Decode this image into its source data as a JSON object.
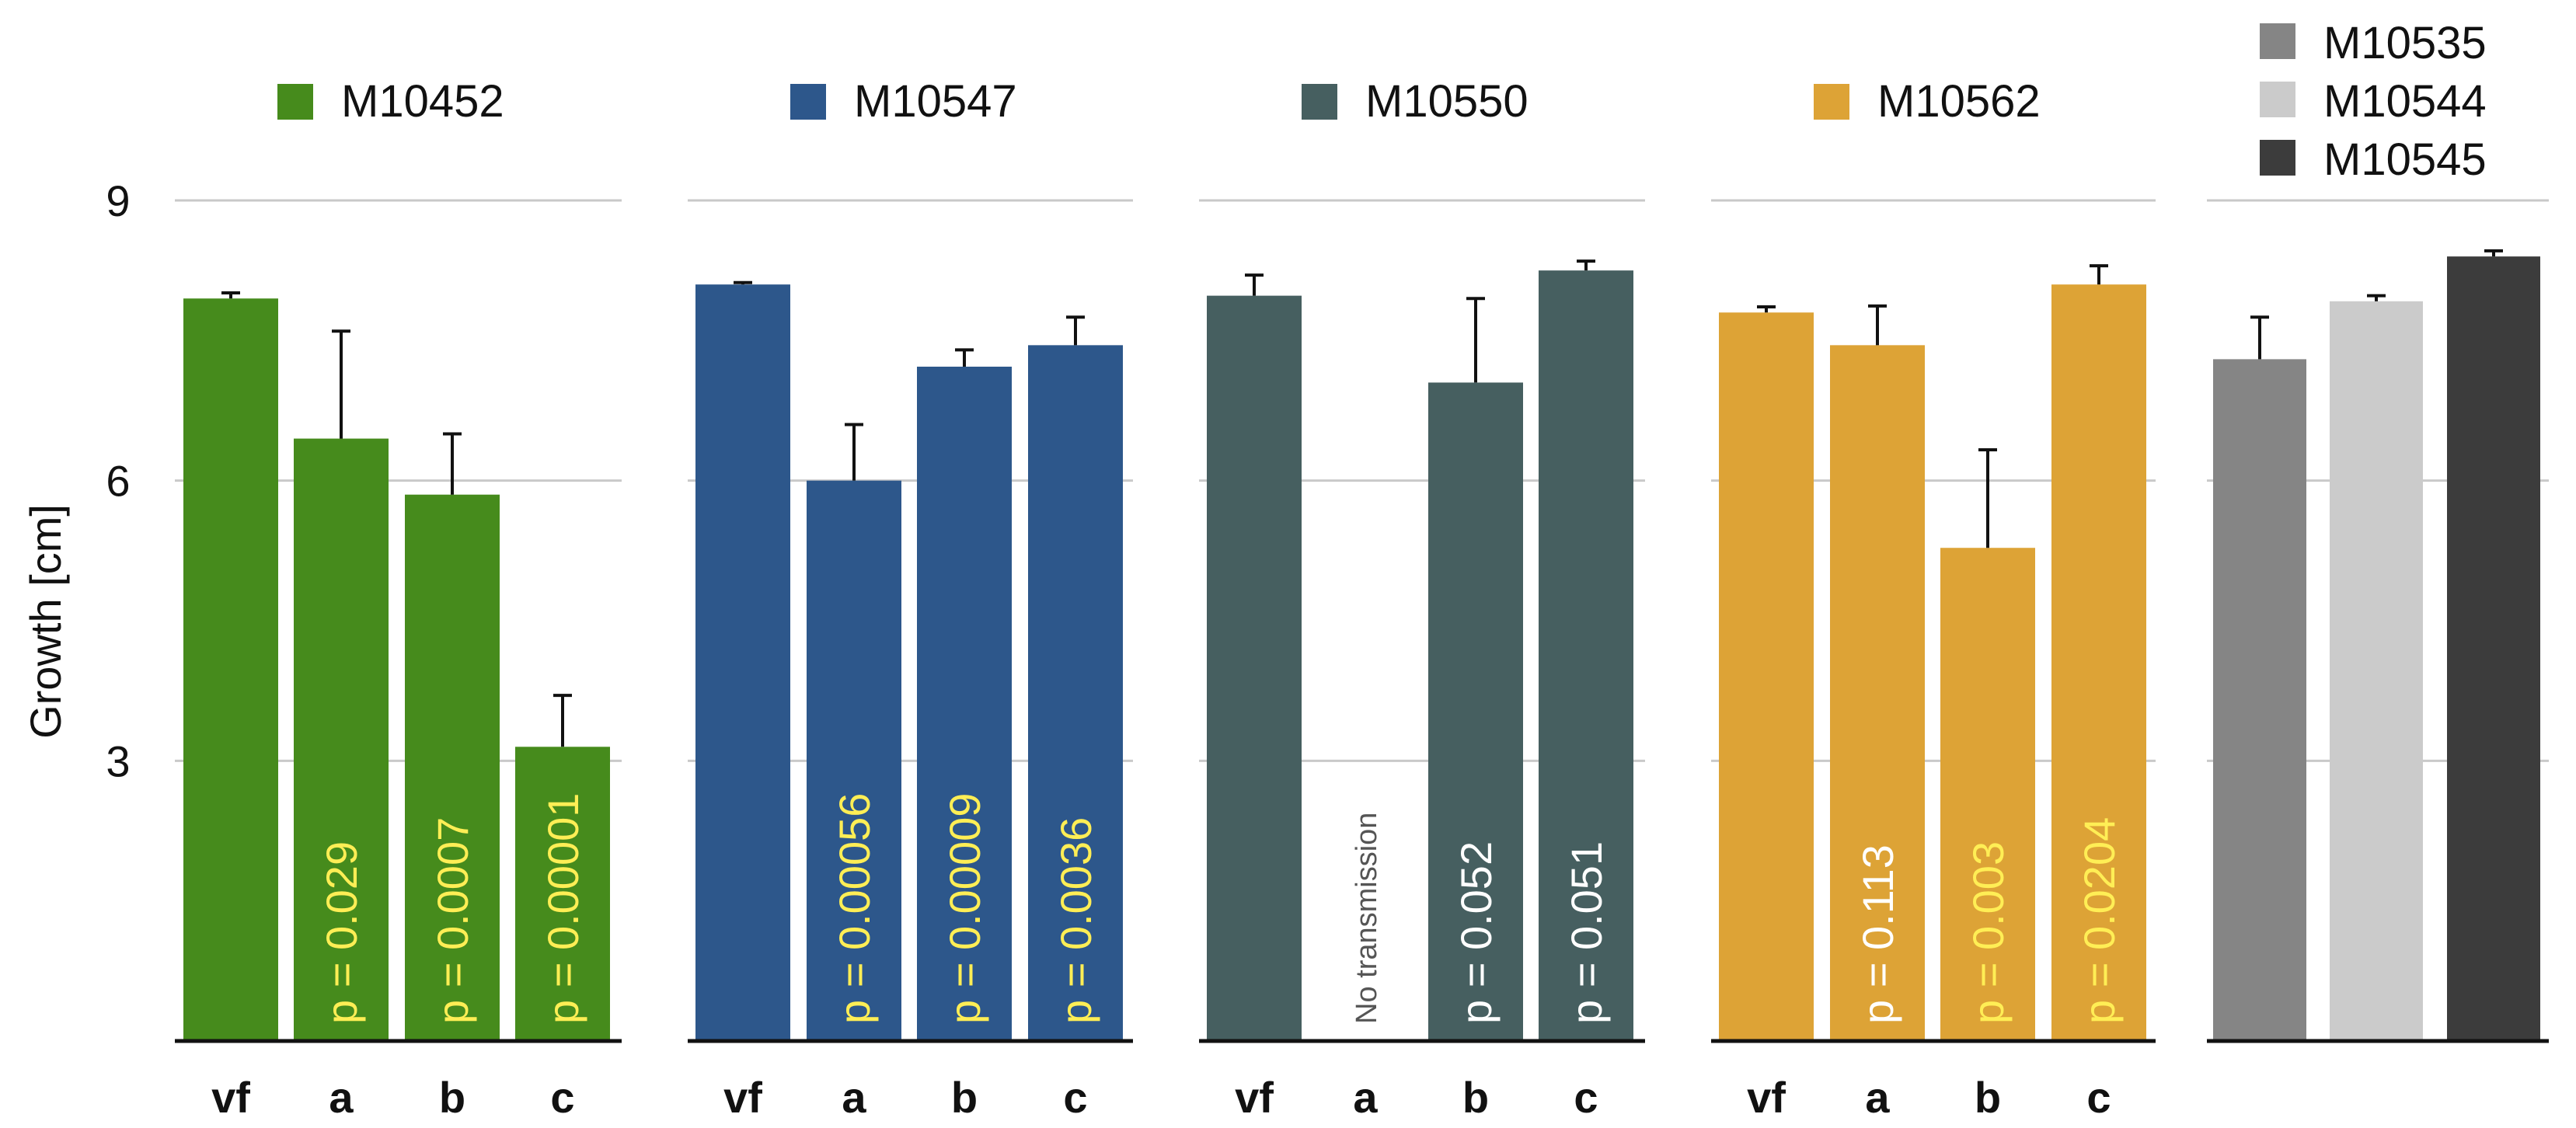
{
  "chart_data": {
    "type": "bar",
    "ylabel": "Growth [cm]",
    "ylim": [
      0,
      9
    ],
    "yticks": [
      3,
      6,
      9
    ],
    "grid": true,
    "colors": {
      "green": "#468b1c",
      "blue": "#2d578b",
      "slate": "#465f60",
      "gold": "#dda336",
      "pval_yellow": "#ffee55",
      "pval_white": "#ffffff",
      "axis": "#111111",
      "grid": "#c9c9c9",
      "label_gray": "#555555"
    },
    "panels": [
      {
        "legend": "M10452",
        "color": "#468b1c",
        "bars": [
          {
            "category": "vf",
            "value": 7.95,
            "error": 0.06
          },
          {
            "category": "a",
            "value": 6.45,
            "error": 1.15,
            "pvalue": "p = 0.029",
            "pcolor": "#ffee55"
          },
          {
            "category": "b",
            "value": 5.85,
            "error": 0.65,
            "pvalue": "p = 0.0007",
            "pcolor": "#ffee55"
          },
          {
            "category": "c",
            "value": 3.15,
            "error": 0.55,
            "pvalue": "p = 0.00001",
            "pcolor": "#ffee55"
          }
        ]
      },
      {
        "legend": "M10547",
        "color": "#2d578b",
        "bars": [
          {
            "category": "vf",
            "value": 8.1,
            "error": 0.02
          },
          {
            "category": "a",
            "value": 6.0,
            "error": 0.6,
            "pvalue": "p = 0.00056",
            "pcolor": "#ffee55"
          },
          {
            "category": "b",
            "value": 7.22,
            "error": 0.18,
            "pvalue": "p = 0.00009",
            "pcolor": "#ffee55"
          },
          {
            "category": "c",
            "value": 7.45,
            "error": 0.3,
            "pvalue": "p = 0.0036",
            "pcolor": "#ffee55"
          }
        ]
      },
      {
        "legend": "M10550",
        "color": "#465f60",
        "bars": [
          {
            "category": "vf",
            "value": 7.98,
            "error": 0.22
          },
          {
            "category": "a",
            "value": 0,
            "error": 0,
            "note": "No transmission"
          },
          {
            "category": "b",
            "value": 7.05,
            "error": 0.9,
            "pvalue": "p = 0.052",
            "pcolor": "#ffffff"
          },
          {
            "category": "c",
            "value": 8.25,
            "error": 0.1,
            "pvalue": "p = 0.051",
            "pcolor": "#ffffff"
          }
        ]
      },
      {
        "legend": "M10562",
        "color": "#dda336",
        "bars": [
          {
            "category": "vf",
            "value": 7.8,
            "error": 0.06
          },
          {
            "category": "a",
            "value": 7.45,
            "error": 0.42,
            "pvalue": "p = 0.113",
            "pcolor": "#ffffff"
          },
          {
            "category": "b",
            "value": 5.28,
            "error": 1.05,
            "pvalue": "p = 0.003",
            "pcolor": "#ffee55"
          },
          {
            "category": "c",
            "value": 8.1,
            "error": 0.2,
            "pvalue": "p = 0.0204",
            "pcolor": "#ffee55"
          }
        ]
      },
      {
        "legend_items": [
          {
            "label": "M10535",
            "color": "#858585"
          },
          {
            "label": "M10544",
            "color": "#cbcbcb"
          },
          {
            "label": "M10545",
            "color": "#3c3c3c"
          }
        ],
        "bars": [
          {
            "series": "M10535",
            "value": 7.3,
            "error": 0.45,
            "color": "#858585"
          },
          {
            "series": "M10544",
            "value": 7.92,
            "error": 0.06,
            "color": "#cbcbcb"
          },
          {
            "series": "M10545",
            "value": 8.4,
            "error": 0.06,
            "color": "#3c3c3c"
          }
        ]
      }
    ]
  }
}
